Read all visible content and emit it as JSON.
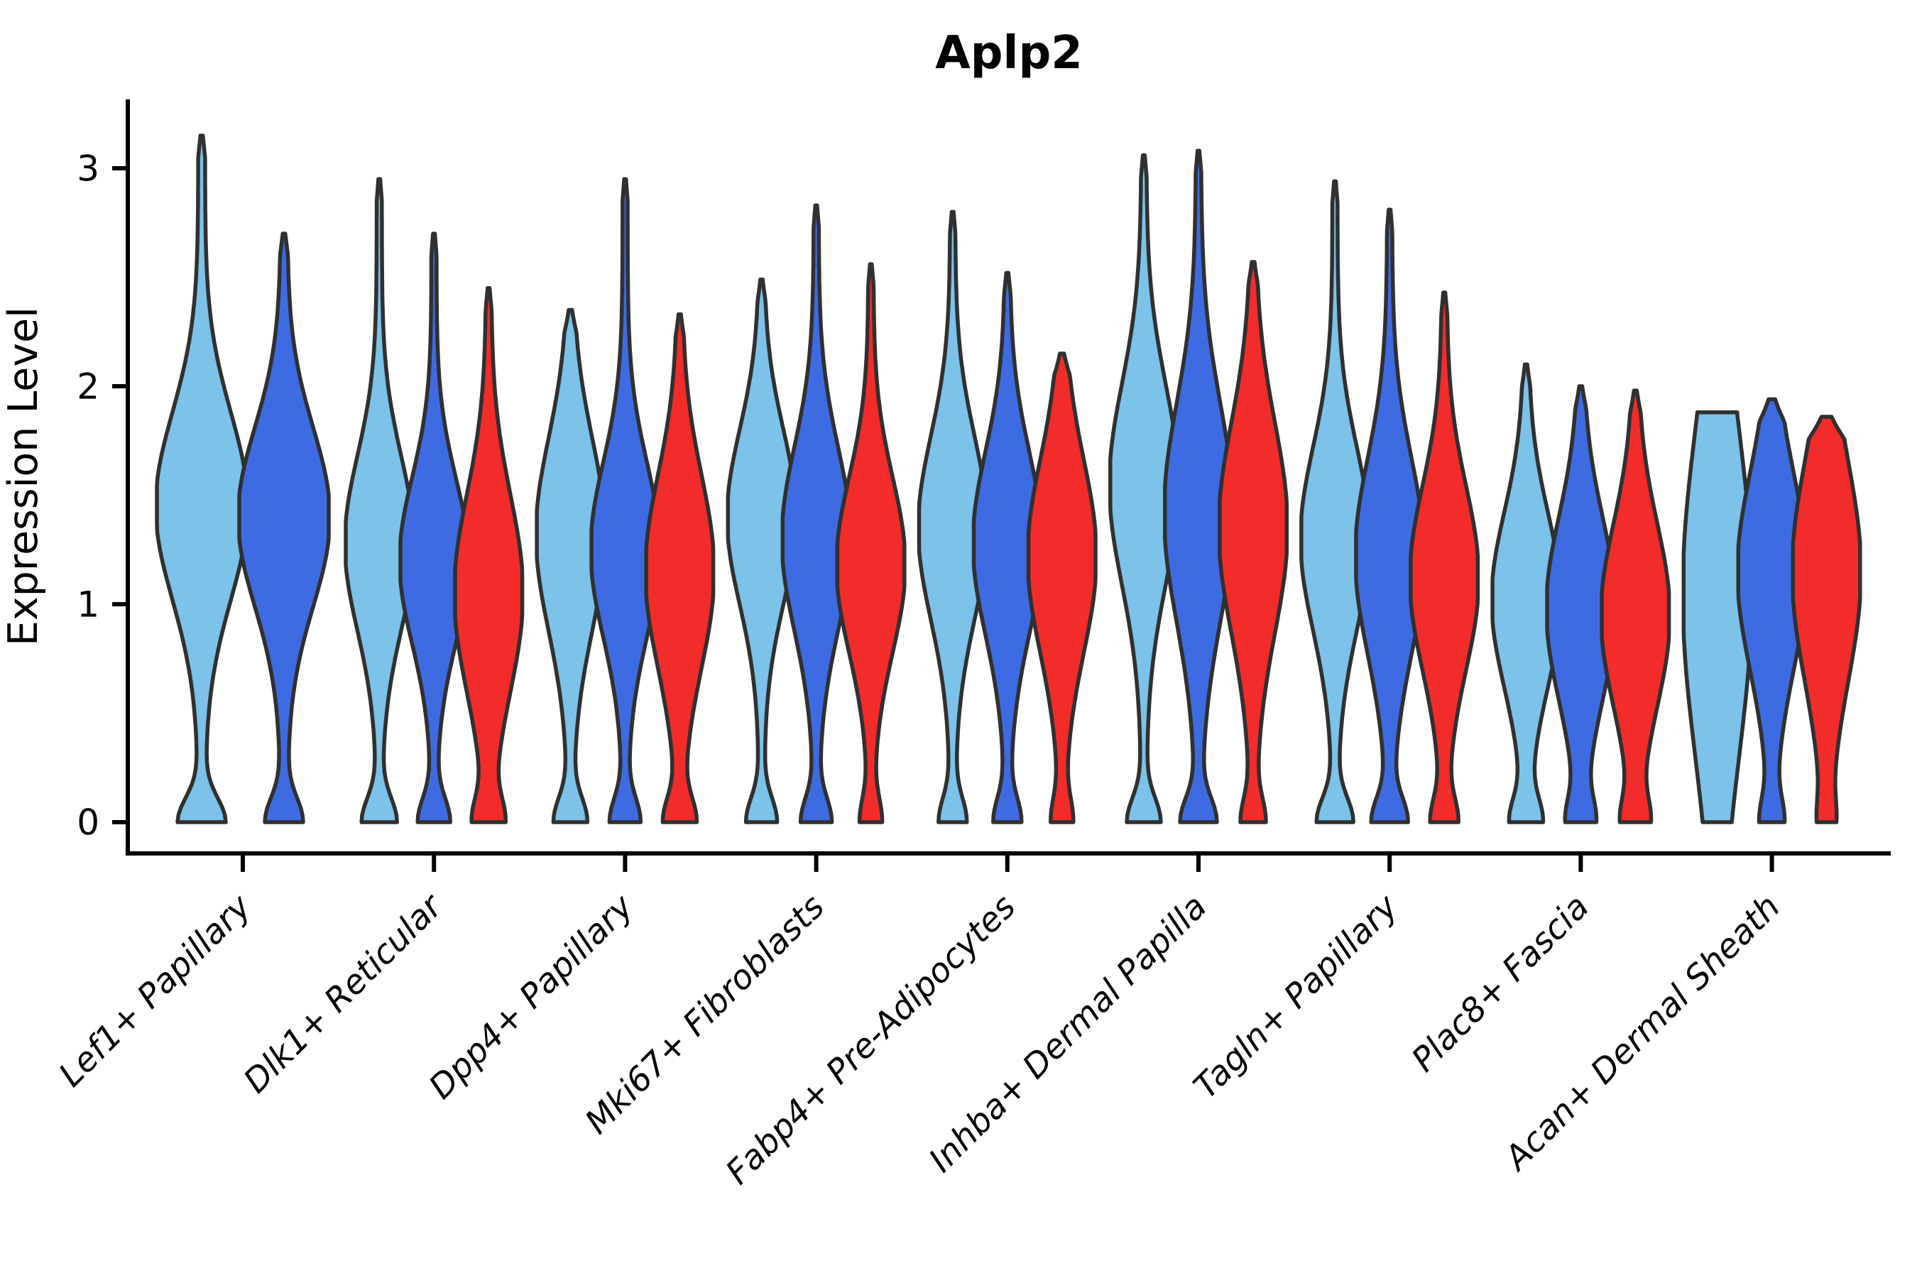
{
  "chart_data": {
    "type": "violin",
    "title": "Aplp2",
    "ylabel": "Expression Level",
    "xlabel": "",
    "yticks": [
      0,
      1,
      2,
      3
    ],
    "ylim": [
      0,
      3.3
    ],
    "grid": false,
    "legend_position": "none",
    "colors": {
      "light": "#7CC2E9",
      "dark": "#3E6BE1",
      "red": "#F22B2B",
      "outline": "#303030",
      "axis": "#000000"
    },
    "series_order": [
      "light",
      "dark",
      "red"
    ],
    "categories": [
      {
        "name": "Lef1+ Papillary",
        "violins": [
          {
            "color": "light",
            "max": 3.15,
            "mode": 1.45,
            "sd": 0.43,
            "base": 34
          },
          {
            "color": "dark",
            "max": 2.7,
            "mode": 1.4,
            "sd": 0.41,
            "base": 27
          }
        ]
      },
      {
        "name": "Dlk1+ Reticular",
        "violins": [
          {
            "color": "light",
            "max": 2.95,
            "mode": 1.28,
            "sd": 0.4,
            "base": 25
          },
          {
            "color": "dark",
            "max": 2.7,
            "mode": 1.2,
            "sd": 0.38,
            "base": 23
          },
          {
            "color": "red",
            "max": 2.45,
            "mode": 1.05,
            "sd": 0.45,
            "base": 24
          }
        ]
      },
      {
        "name": "Dpp4+ Papillary",
        "violins": [
          {
            "color": "light",
            "max": 2.35,
            "mode": 1.32,
            "sd": 0.44,
            "base": 24
          },
          {
            "color": "dark",
            "max": 2.95,
            "mode": 1.25,
            "sd": 0.4,
            "base": 22
          },
          {
            "color": "red",
            "max": 2.33,
            "mode": 1.15,
            "sd": 0.44,
            "base": 24
          }
        ]
      },
      {
        "name": "Mki67+ Fibroblasts",
        "violins": [
          {
            "color": "light",
            "max": 2.49,
            "mode": 1.4,
            "sd": 0.4,
            "base": 22
          },
          {
            "color": "dark",
            "max": 2.83,
            "mode": 1.3,
            "sd": 0.42,
            "base": 22
          },
          {
            "color": "red",
            "max": 2.56,
            "mode": 1.18,
            "sd": 0.4,
            "base": 16
          }
        ]
      },
      {
        "name": "Fabp4+ Pre-Adipocytes",
        "violins": [
          {
            "color": "light",
            "max": 2.8,
            "mode": 1.35,
            "sd": 0.42,
            "base": 20
          },
          {
            "color": "dark",
            "max": 2.52,
            "mode": 1.28,
            "sd": 0.42,
            "base": 20
          },
          {
            "color": "red",
            "max": 2.15,
            "mode": 1.22,
            "sd": 0.44,
            "base": 16
          }
        ]
      },
      {
        "name": "Inhba+ Dermal Papilla",
        "violins": [
          {
            "color": "light",
            "max": 3.06,
            "mode": 1.55,
            "sd": 0.46,
            "base": 24
          },
          {
            "color": "dark",
            "max": 3.08,
            "mode": 1.42,
            "sd": 0.5,
            "base": 26
          },
          {
            "color": "red",
            "max": 2.57,
            "mode": 1.35,
            "sd": 0.48,
            "base": 18
          }
        ]
      },
      {
        "name": "Tagln+ Papillary",
        "violins": [
          {
            "color": "light",
            "max": 2.94,
            "mode": 1.3,
            "sd": 0.42,
            "base": 26
          },
          {
            "color": "dark",
            "max": 2.81,
            "mode": 1.22,
            "sd": 0.45,
            "base": 26
          },
          {
            "color": "red",
            "max": 2.43,
            "mode": 1.12,
            "sd": 0.42,
            "base": 20
          }
        ]
      },
      {
        "name": "Plac8+ Fascia",
        "violins": [
          {
            "color": "light",
            "max": 2.1,
            "mode": 1.02,
            "sd": 0.4,
            "base": 24
          },
          {
            "color": "dark",
            "max": 2.0,
            "mode": 0.98,
            "sd": 0.42,
            "base": 22
          },
          {
            "color": "red",
            "max": 1.98,
            "mode": 0.95,
            "sd": 0.42,
            "base": 22
          }
        ]
      },
      {
        "name": "Acan+ Dermal Sheath",
        "violins": [
          {
            "color": "light",
            "max": 1.88,
            "mode": 1.05,
            "sd": 0.75,
            "base": 20,
            "flat_top": true
          },
          {
            "color": "dark",
            "max": 1.94,
            "mode": 1.15,
            "sd": 0.45,
            "base": 18
          },
          {
            "color": "red",
            "max": 1.86,
            "mode": 1.15,
            "sd": 0.5,
            "base": 14
          }
        ]
      }
    ]
  }
}
